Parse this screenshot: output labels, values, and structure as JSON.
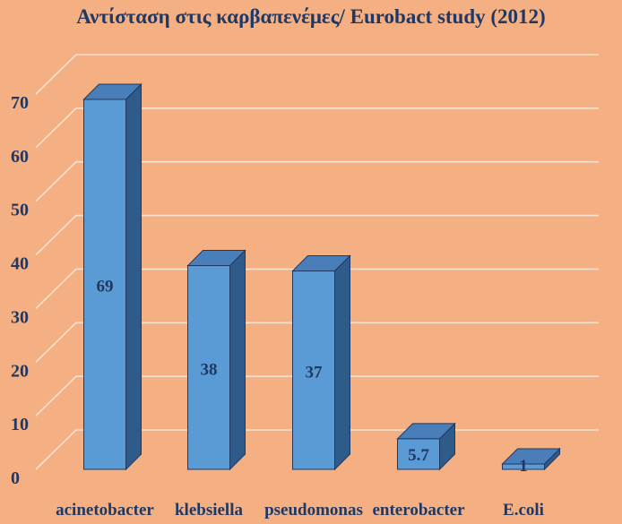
{
  "chart_data": {
    "type": "bar",
    "title": "Αντίσταση στις καρβαπενέμες/ Eurobact study (2012)",
    "xlabel": "",
    "ylabel": "",
    "categories": [
      "acinetobacter",
      "klebsiella",
      "pseudomonas",
      "enterobacter",
      "E.coli"
    ],
    "values": [
      69,
      38,
      37,
      5.7,
      1
    ],
    "data_labels": [
      "69",
      "38",
      "37",
      "5.7",
      "1"
    ],
    "ylim": [
      0,
      70
    ],
    "yticks": [
      0,
      10,
      20,
      30,
      40,
      50,
      60,
      70
    ],
    "grid": true,
    "legend": "none",
    "style": "3d-column"
  },
  "colors": {
    "background": "#F4AF82",
    "bar_front": "#5B9BD5",
    "bar_top": "#4A7EB8",
    "bar_side": "#2E5B8A",
    "bar_outline": "#1F3864",
    "gridline": "#F8E3D2",
    "text": "#1F3864"
  }
}
